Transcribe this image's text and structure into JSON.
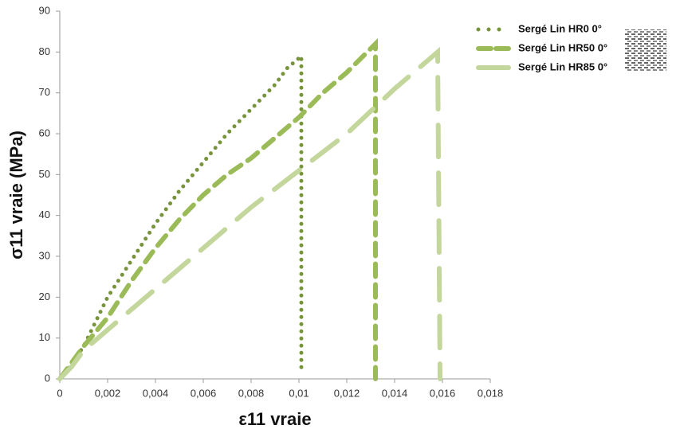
{
  "chart_data": {
    "type": "line",
    "x_label": "ε11 vraie",
    "y_label": "σ11 vraie (MPa)",
    "xlim": [
      0,
      0.018
    ],
    "xticks": [
      0,
      {
        "value": 0.002,
        "label": "0,002"
      },
      {
        "value": 0.004,
        "label": "0,004"
      },
      {
        "value": 0.006,
        "label": "0,006"
      },
      {
        "value": 0.008,
        "label": "0,008"
      },
      {
        "value": 0.01,
        "label": "0,01"
      },
      {
        "value": 0.012,
        "label": "0,012"
      },
      {
        "value": 0.014,
        "label": "0,014"
      },
      {
        "value": 0.016,
        "label": "0,016"
      },
      {
        "value": 0.018,
        "label": "0,018"
      }
    ],
    "ylim": [
      0,
      90
    ],
    "yticks": [
      0,
      10,
      20,
      30,
      40,
      50,
      60,
      70,
      80,
      90
    ],
    "grid": false,
    "legend": "top-right",
    "series": [
      {
        "name": "Sergé Lin HR0 0°",
        "color": "#77933c",
        "style": "dotted",
        "x": [
          0,
          0.0003,
          0.001,
          0.002,
          0.003,
          0.004,
          0.005,
          0.006,
          0.007,
          0.008,
          0.009,
          0.0095,
          0.0101,
          0.0101
        ],
        "values": [
          0,
          2,
          8,
          20,
          29,
          38,
          46,
          53,
          60,
          66,
          72,
          76,
          79,
          2
        ]
      },
      {
        "name": "Sergé Lin HR50 0°",
        "color": "#9bbb59",
        "style": "dashed",
        "x": [
          0,
          0.001,
          0.002,
          0.003,
          0.004,
          0.005,
          0.006,
          0.007,
          0.008,
          0.009,
          0.01,
          0.011,
          0.012,
          0.0132,
          0.0132
        ],
        "values": [
          0,
          8,
          15,
          24,
          32,
          39,
          45,
          50,
          54,
          59,
          64,
          70,
          75,
          82,
          0
        ]
      },
      {
        "name": "Sergé Lin HR85 0°",
        "color": "#c3d69b",
        "style": "longdash",
        "x": [
          0,
          0.0005,
          0.001,
          0.002,
          0.004,
          0.006,
          0.008,
          0.01,
          0.012,
          0.014,
          0.0158,
          0.0159
        ],
        "values": [
          0,
          3,
          7,
          12,
          22,
          32,
          42,
          51,
          60,
          71,
          80,
          0
        ]
      }
    ]
  }
}
